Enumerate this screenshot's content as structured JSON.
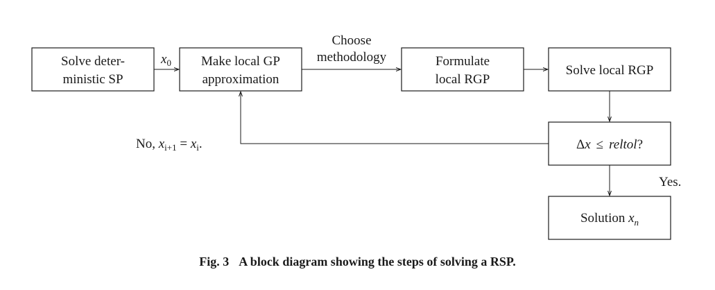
{
  "boxes": {
    "solve_deterministic": {
      "line1": "Solve deter-",
      "line2": "ministic SP"
    },
    "make_local_gp": {
      "line1": "Make local GP",
      "line2": "approximation"
    },
    "formulate_rgp": {
      "line1": "Formulate",
      "line2": "local RGP"
    },
    "solve_local_rgp": {
      "text": "Solve local RGP"
    },
    "check_tolerance": {
      "delta": "Δ",
      "x": "x",
      "leq": "≤",
      "reltol": "reltol",
      "q": "?"
    },
    "solution": {
      "text": "Solution ",
      "x": "x",
      "sub": "n"
    }
  },
  "edges": {
    "x0": {
      "x": "x",
      "sub": "0"
    },
    "choose_methodology": {
      "line1": "Choose",
      "line2": "methodology"
    },
    "no_loop": {
      "prefix": "No, ",
      "x1": "x",
      "sub1": "i+1",
      "eq": " = ",
      "x2": "x",
      "sub2": "i",
      "suffix": "."
    },
    "yes": "Yes."
  },
  "caption": {
    "fig_number": "Fig. 3",
    "text": "A block diagram showing the steps of solving a RSP."
  }
}
